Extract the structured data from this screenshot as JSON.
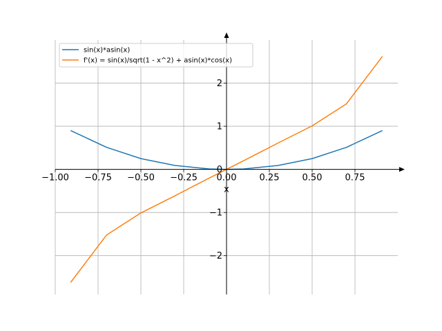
{
  "chart_data": {
    "type": "line",
    "title": "",
    "xlabel": "x",
    "ylabel": "",
    "xlim": [
      -1.0,
      1.0
    ],
    "ylim": [
      -2.9,
      3.0
    ],
    "grid": true,
    "legend_position": "top-left",
    "x_ticks": [
      -1.0,
      -0.75,
      -0.5,
      -0.25,
      0.0,
      0.25,
      0.5,
      0.75
    ],
    "x_tick_labels": [
      "−1.00",
      "−0.75",
      "−0.50",
      "−0.25",
      "0.00",
      "0.25",
      "0.50",
      "0.75"
    ],
    "y_ticks": [
      -2,
      -1,
      0,
      1,
      2
    ],
    "y_tick_labels": [
      "−2",
      "−1",
      "0",
      "1",
      "2"
    ],
    "series": [
      {
        "name": "sin(x)*asin(x)",
        "color": "#1f77b4",
        "x": [
          -0.91,
          -0.7,
          -0.5,
          -0.3,
          -0.1,
          0.0,
          0.1,
          0.3,
          0.5,
          0.7,
          0.91
        ],
        "y": [
          0.9,
          0.51,
          0.25,
          0.09,
          0.01,
          0.0,
          0.01,
          0.09,
          0.25,
          0.51,
          0.9
        ]
      },
      {
        "name": "f'(x) = sin(x)/sqrt(1 - x^2) + asin(x)*cos(x)",
        "color": "#ff7f0e",
        "x": [
          -0.91,
          -0.7,
          -0.5,
          -0.3,
          -0.1,
          0.0,
          0.1,
          0.3,
          0.5,
          0.7,
          0.91
        ],
        "y": [
          -2.62,
          -1.52,
          -1.01,
          -0.61,
          -0.2,
          0.0,
          0.2,
          0.61,
          1.01,
          1.52,
          2.62
        ]
      }
    ]
  }
}
